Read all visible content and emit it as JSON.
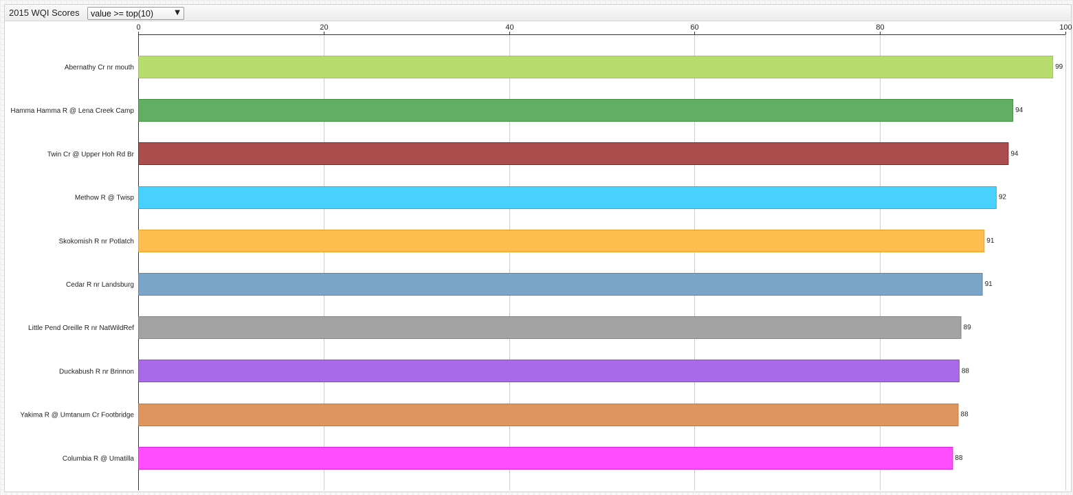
{
  "header": {
    "title": "2015 WQI Scores",
    "filter_value": "value >= top(10)",
    "filter_arrow_icon": "chevron-down-icon"
  },
  "chart_data": {
    "type": "bar",
    "orientation": "horizontal",
    "xlim": [
      0,
      100
    ],
    "ticks": [
      0,
      20,
      40,
      60,
      80,
      100
    ],
    "grid": true,
    "categories": [
      "Abernathy Cr nr mouth",
      "Hamma Hamma R @ Lena Creek Camp",
      "Twin Cr @ Upper Hoh Rd Br",
      "Methow R @ Twisp",
      "Skokomish R nr Potlatch",
      "Cedar R nr Landsburg",
      "Little Pend Oreille R nr NatWildRef",
      "Duckabush R nr Brinnon",
      "Yakima R @ Umtanum Cr Footbridge",
      "Columbia R @ Umatilla"
    ],
    "values": [
      98.6,
      94.3,
      93.8,
      92.5,
      91.2,
      91.0,
      88.7,
      88.5,
      88.4,
      87.8
    ],
    "labels": [
      "99",
      "94",
      "94",
      "92",
      "91",
      "91",
      "89",
      "88",
      "88",
      "88"
    ],
    "colors": [
      "#b8dd6f",
      "#62ae62",
      "#a94d4d",
      "#4ad0fd",
      "#ffbe4d",
      "#7ba5c8",
      "#a3a3a3",
      "#a96aea",
      "#e0955f",
      "#ff4dff"
    ],
    "borders": [
      "#9cc84a",
      "#3f9040",
      "#822525",
      "#20b2e5",
      "#eda021",
      "#5b87b0",
      "#858585",
      "#8c46d6",
      "#c6743b",
      "#e21ee2"
    ]
  }
}
